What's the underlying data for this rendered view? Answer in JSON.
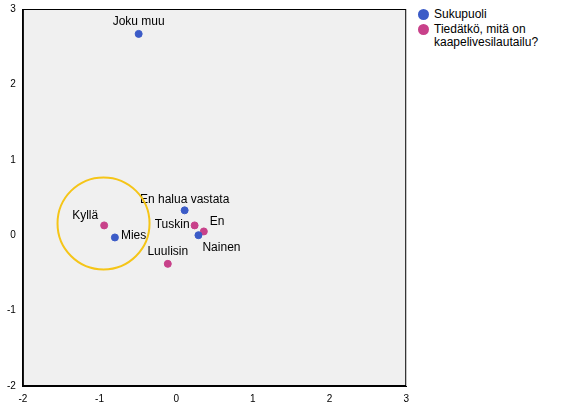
{
  "chart_data": {
    "type": "scatter",
    "xlim": [
      -2,
      3
    ],
    "ylim": [
      -2,
      3
    ],
    "xticks": [
      -2,
      -1,
      0,
      1,
      2,
      3
    ],
    "yticks": [
      -2,
      -1,
      0,
      1,
      2,
      3
    ],
    "grid": false,
    "legend": "top right",
    "series": [
      {
        "name": "Sukupuoli",
        "color": "#3b5bc7",
        "marker": "circle",
        "points": [
          {
            "label": "Mies",
            "x": -0.8,
            "y": -0.03
          },
          {
            "label": "Nainen",
            "x": 0.29,
            "y": 0.0
          },
          {
            "label": "Joku muu",
            "x": -0.49,
            "y": 2.67
          },
          {
            "label": "En halua vastata",
            "x": 0.11,
            "y": 0.33
          }
        ]
      },
      {
        "name": "Tiedätkö, mitä on kaapelivesilautailu?",
        "color": "#c8418a",
        "marker": "circle",
        "points": [
          {
            "label": "Kyllä",
            "x": -0.94,
            "y": 0.13
          },
          {
            "label": "En",
            "x": 0.36,
            "y": 0.05
          },
          {
            "label": "Tuskin",
            "x": 0.24,
            "y": 0.13
          },
          {
            "label": "Luulisin",
            "x": -0.11,
            "y": -0.38
          }
        ]
      }
    ]
  }
}
